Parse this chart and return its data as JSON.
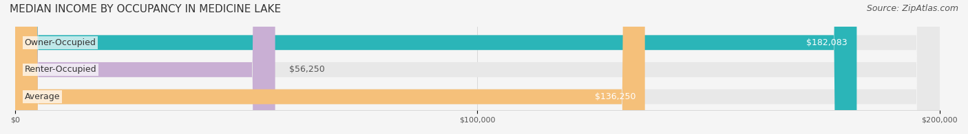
{
  "title": "MEDIAN INCOME BY OCCUPANCY IN MEDICINE LAKE",
  "source": "Source: ZipAtlas.com",
  "categories": [
    "Owner-Occupied",
    "Renter-Occupied",
    "Average"
  ],
  "values": [
    182083,
    56250,
    136250
  ],
  "bar_colors": [
    "#2bb5b8",
    "#c9afd4",
    "#f5c07a"
  ],
  "bar_labels": [
    "$182,083",
    "$56,250",
    "$136,250"
  ],
  "label_colors": [
    "#ffffff",
    "#555555",
    "#ffffff"
  ],
  "xlim": [
    0,
    200000
  ],
  "xticks": [
    0,
    100000,
    200000
  ],
  "xtick_labels": [
    "$0",
    "$100,000",
    "$200,000"
  ],
  "background_color": "#f5f5f5",
  "bar_background_color": "#e8e8e8",
  "title_fontsize": 11,
  "source_fontsize": 9,
  "label_fontsize": 9,
  "category_fontsize": 9
}
